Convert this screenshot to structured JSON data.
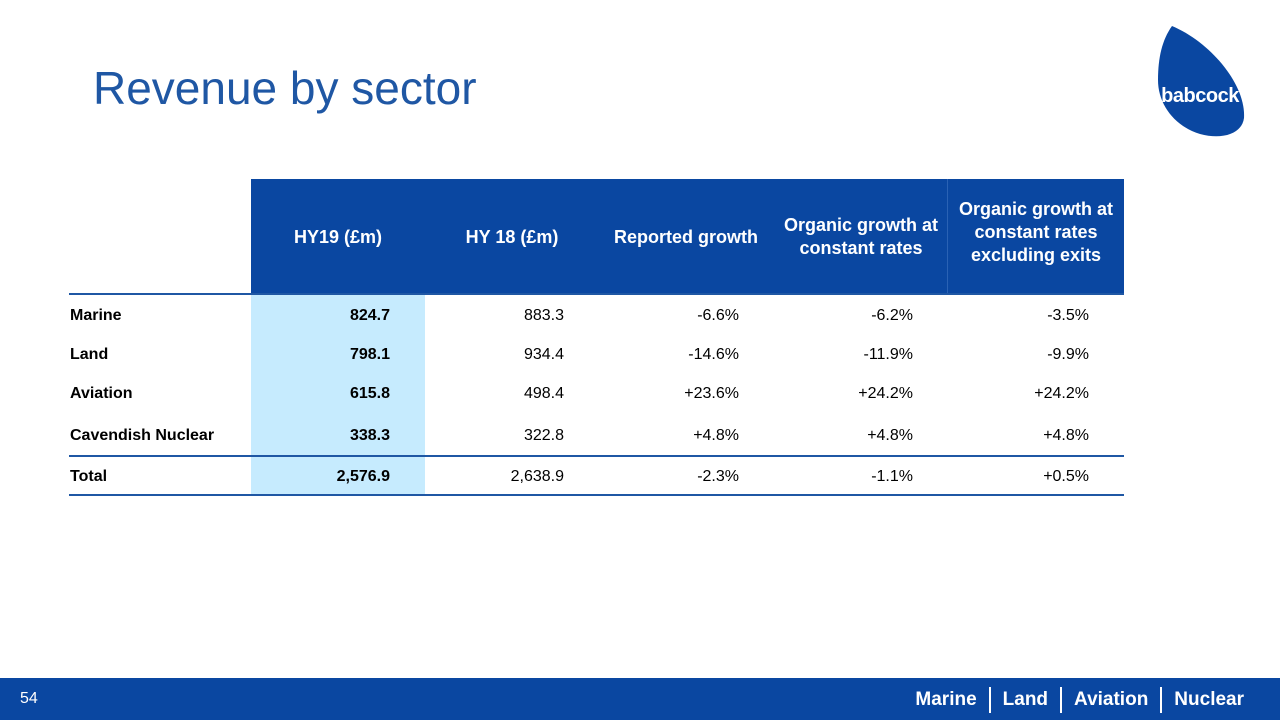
{
  "title": "Revenue by sector",
  "logo": {
    "text": "babcock"
  },
  "table": {
    "headers": [
      "HY19 (£m)",
      "HY 18 (£m)",
      "Reported growth",
      "Organic growth at constant rates",
      "Organic growth at constant rates excluding exits"
    ],
    "rows": [
      {
        "label": "Marine",
        "hy19": "824.7",
        "hy18": "883.3",
        "reported": "-6.6%",
        "organic": "-6.2%",
        "organic_ex": "-3.5%"
      },
      {
        "label": "Land",
        "hy19": "798.1",
        "hy18": "934.4",
        "reported": "-14.6%",
        "organic": "-11.9%",
        "organic_ex": "-9.9%"
      },
      {
        "label": "Aviation",
        "hy19": "615.8",
        "hy18": "498.4",
        "reported": "+23.6%",
        "organic": "+24.2%",
        "organic_ex": "+24.2%"
      },
      {
        "label": "Cavendish Nuclear",
        "hy19": "338.3",
        "hy18": "322.8",
        "reported": "+4.8%",
        "organic": "+4.8%",
        "organic_ex": "+4.8%"
      },
      {
        "label": "Total",
        "hy19": "2,576.9",
        "hy18": "2,638.9",
        "reported": "-2.3%",
        "organic": "-1.1%",
        "organic_ex": "+0.5%"
      }
    ]
  },
  "footer": {
    "page_number": "54",
    "nav": [
      "Marine",
      "Land",
      "Aviation",
      "Nuclear"
    ]
  },
  "colors": {
    "brand_blue": "#0a47a1",
    "title_blue": "#1f57a4",
    "highlight": "#c6ebfe"
  }
}
